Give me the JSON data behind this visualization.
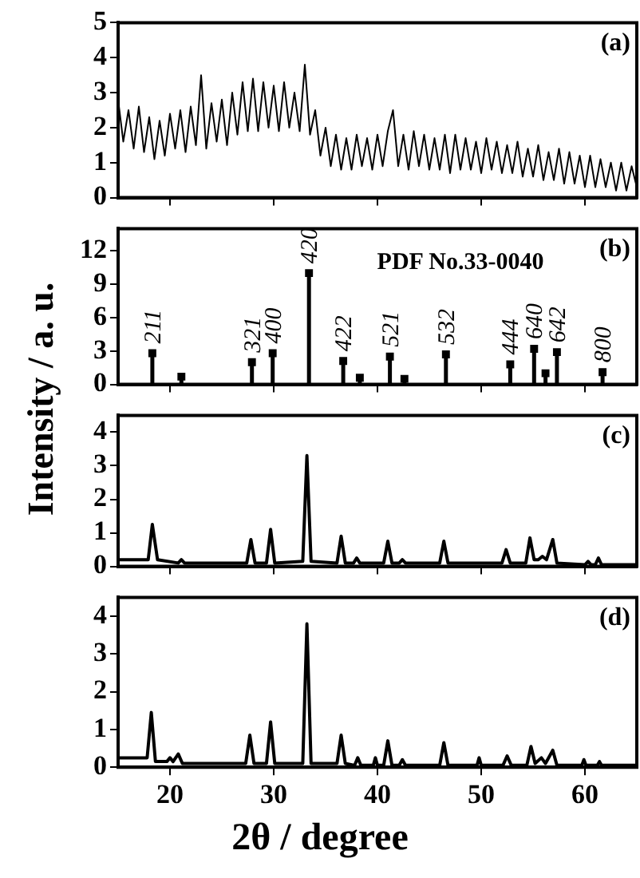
{
  "chart_data": [
    {
      "type": "line",
      "title": "(a)",
      "xlim": [
        15,
        65
      ],
      "xticks": [
        20,
        30,
        40,
        50,
        60
      ],
      "ylim": [
        0,
        5
      ],
      "yticks": [
        0,
        1,
        2,
        3,
        4,
        5
      ],
      "grid": false,
      "legend": false,
      "tick_labels": "y",
      "marker": "none",
      "x": [
        15,
        15.5,
        16,
        16.5,
        17,
        17.5,
        18,
        18.5,
        19,
        19.5,
        20,
        20.5,
        21,
        21.5,
        22,
        22.5,
        23,
        23.5,
        24,
        24.5,
        25,
        25.5,
        26,
        26.5,
        27,
        27.5,
        28,
        28.5,
        29,
        29.5,
        30,
        30.5,
        31,
        31.5,
        32,
        32.5,
        33,
        33.5,
        34,
        34.5,
        35,
        35.5,
        36,
        36.5,
        37,
        37.5,
        38,
        38.5,
        39,
        39.5,
        40,
        40.5,
        41,
        41.5,
        42,
        42.5,
        43,
        43.5,
        44,
        44.5,
        45,
        45.5,
        46,
        46.5,
        47,
        47.5,
        48,
        48.5,
        49,
        49.5,
        50,
        50.5,
        51,
        51.5,
        52,
        52.5,
        53,
        53.5,
        54,
        54.5,
        55,
        55.5,
        56,
        56.5,
        57,
        57.5,
        58,
        58.5,
        59,
        59.5,
        60,
        60.5,
        61,
        61.5,
        62,
        62.5,
        63,
        63.5,
        64,
        64.5,
        65
      ],
      "series": [
        {
          "color": "#000000",
          "values": [
            2.8,
            1.6,
            2.5,
            1.4,
            2.6,
            1.3,
            2.3,
            1.1,
            2.2,
            1.2,
            2.4,
            1.4,
            2.5,
            1.3,
            2.6,
            1.5,
            3.5,
            1.4,
            2.7,
            1.6,
            2.8,
            1.5,
            3.0,
            1.8,
            3.3,
            1.9,
            3.4,
            1.9,
            3.3,
            2.0,
            3.2,
            1.9,
            3.3,
            2.0,
            3.0,
            1.9,
            3.8,
            1.8,
            2.5,
            1.2,
            2.0,
            0.9,
            1.8,
            0.8,
            1.7,
            0.8,
            1.8,
            0.9,
            1.7,
            0.8,
            1.8,
            0.9,
            1.9,
            2.5,
            0.9,
            1.8,
            0.8,
            1.9,
            0.9,
            1.8,
            0.8,
            1.7,
            0.8,
            1.8,
            0.7,
            1.8,
            0.8,
            1.7,
            0.8,
            1.6,
            0.7,
            1.7,
            0.8,
            1.6,
            0.7,
            1.5,
            0.7,
            1.6,
            0.6,
            1.4,
            0.6,
            1.5,
            0.5,
            1.3,
            0.5,
            1.4,
            0.4,
            1.3,
            0.4,
            1.2,
            0.3,
            1.2,
            0.3,
            1.1,
            0.3,
            1.0,
            0.2,
            1.0,
            0.2,
            0.9,
            0.3
          ]
        }
      ]
    },
    {
      "type": "lollipop",
      "title": "(b)",
      "ylabel": "Intensity / a. u.",
      "annotations": [
        "PDF No.33-0040",
        {
          "text": "211",
          "x": 18.3,
          "y": 2.8
        },
        {
          "text": "321",
          "x": 27.9,
          "y": 2
        },
        {
          "text": "400",
          "x": 29.9,
          "y": 2.8
        },
        {
          "text": "420",
          "x": 33.4,
          "y": 10
        },
        {
          "text": "422",
          "x": 36.7,
          "y": 2.1
        },
        {
          "text": "521",
          "x": 41.2,
          "y": 2.5
        },
        {
          "text": "532",
          "x": 46.6,
          "y": 2.7
        },
        {
          "text": "444",
          "x": 52.8,
          "y": 1.8
        },
        {
          "text": "640",
          "x": 55.1,
          "y": 3.2
        },
        {
          "text": "642",
          "x": 57.3,
          "y": 2.9
        },
        {
          "text": "800",
          "x": 61.7,
          "y": 1.1
        }
      ],
      "xlim": [
        15,
        65
      ],
      "xticks": [
        20,
        30,
        40,
        50,
        60
      ],
      "ylim": [
        0,
        14
      ],
      "yticks": [
        0,
        3,
        6,
        9,
        12
      ],
      "grid": false,
      "legend": false,
      "tick_labels": "y",
      "marker": "square",
      "x": [
        18.3,
        21.1,
        27.9,
        29.9,
        33.4,
        36.7,
        38.3,
        41.2,
        42.6,
        46.6,
        52.8,
        55.1,
        56.2,
        57.3,
        61.7
      ],
      "series": [
        {
          "color": "#000000",
          "values": [
            2.8,
            0.7,
            2,
            2.8,
            10,
            2.1,
            0.6,
            2.5,
            0.5,
            2.7,
            1.8,
            3.2,
            1,
            2.9,
            1.1
          ]
        }
      ]
    },
    {
      "type": "line",
      "title": "(c)",
      "xlim": [
        15,
        65
      ],
      "xticks": [
        20,
        30,
        40,
        50,
        60
      ],
      "ylim": [
        0,
        4.5
      ],
      "yticks": [
        0,
        1,
        2,
        3,
        4
      ],
      "grid": false,
      "legend": false,
      "tick_labels": "y",
      "marker": "none",
      "x": [
        15,
        17.9,
        18.3,
        18.8,
        20.8,
        21.1,
        21.4,
        27.4,
        27.8,
        28.2,
        29.3,
        29.7,
        30.1,
        32.8,
        33.2,
        33.6,
        36.1,
        36.5,
        36.9,
        37.7,
        38.0,
        38.3,
        40.6,
        41.0,
        41.4,
        42.1,
        42.4,
        42.7,
        46.0,
        46.4,
        46.8,
        52.0,
        52.4,
        52.8,
        54.3,
        54.7,
        55.1,
        55.5,
        55.9,
        56.3,
        56.9,
        57.3,
        60.0,
        60.3,
        60.6,
        61.0,
        61.3,
        61.6,
        65
      ],
      "series": [
        {
          "color": "#000000",
          "values": [
            0.2,
            0.2,
            1.25,
            0.2,
            0.1,
            0.2,
            0.1,
            0.1,
            0.8,
            0.1,
            0.1,
            1.1,
            0.1,
            0.15,
            3.3,
            0.15,
            0.1,
            0.9,
            0.1,
            0.1,
            0.25,
            0.1,
            0.1,
            0.75,
            0.1,
            0.1,
            0.2,
            0.1,
            0.1,
            0.75,
            0.1,
            0.1,
            0.5,
            0.1,
            0.1,
            0.85,
            0.2,
            0.2,
            0.3,
            0.2,
            0.8,
            0.1,
            0.05,
            0.15,
            0.05,
            0.05,
            0.25,
            0.05,
            0.05
          ]
        }
      ]
    },
    {
      "type": "line",
      "title": "(d)",
      "xlabel": "2θ / degree",
      "xlim": [
        15,
        65
      ],
      "xticks": [
        20,
        30,
        40,
        50,
        60
      ],
      "ylim": [
        0,
        4.5
      ],
      "yticks": [
        0,
        1,
        2,
        3,
        4
      ],
      "grid": false,
      "legend": false,
      "marker": "none",
      "x": [
        15,
        17.8,
        18.2,
        18.6,
        19.7,
        20.0,
        20.3,
        20.8,
        21.2,
        27.3,
        27.7,
        28.1,
        29.3,
        29.7,
        30.1,
        32.8,
        33.2,
        33.6,
        36.1,
        36.5,
        36.9,
        37.8,
        38.1,
        38.4,
        39.6,
        39.8,
        40.0,
        40.6,
        41.0,
        41.4,
        42.1,
        42.4,
        42.7,
        46.0,
        46.4,
        46.8,
        49.6,
        49.8,
        50.0,
        52.1,
        52.5,
        52.9,
        54.4,
        54.8,
        55.2,
        55.8,
        56.2,
        56.9,
        57.3,
        59.7,
        59.9,
        60.1,
        61.2,
        61.4,
        61.6,
        65
      ],
      "series": [
        {
          "color": "#000000",
          "values": [
            0.25,
            0.25,
            1.45,
            0.15,
            0.15,
            0.25,
            0.15,
            0.35,
            0.1,
            0.1,
            0.85,
            0.1,
            0.1,
            1.2,
            0.1,
            0.1,
            3.8,
            0.1,
            0.1,
            0.85,
            0.1,
            0.05,
            0.25,
            0.05,
            0.05,
            0.25,
            0.05,
            0.05,
            0.7,
            0.05,
            0.05,
            0.2,
            0.05,
            0.05,
            0.65,
            0.05,
            0.05,
            0.25,
            0.05,
            0.05,
            0.3,
            0.05,
            0.05,
            0.55,
            0.1,
            0.25,
            0.1,
            0.45,
            0.05,
            0.05,
            0.2,
            0.05,
            0.05,
            0.15,
            0.05,
            0.05
          ]
        }
      ]
    }
  ]
}
